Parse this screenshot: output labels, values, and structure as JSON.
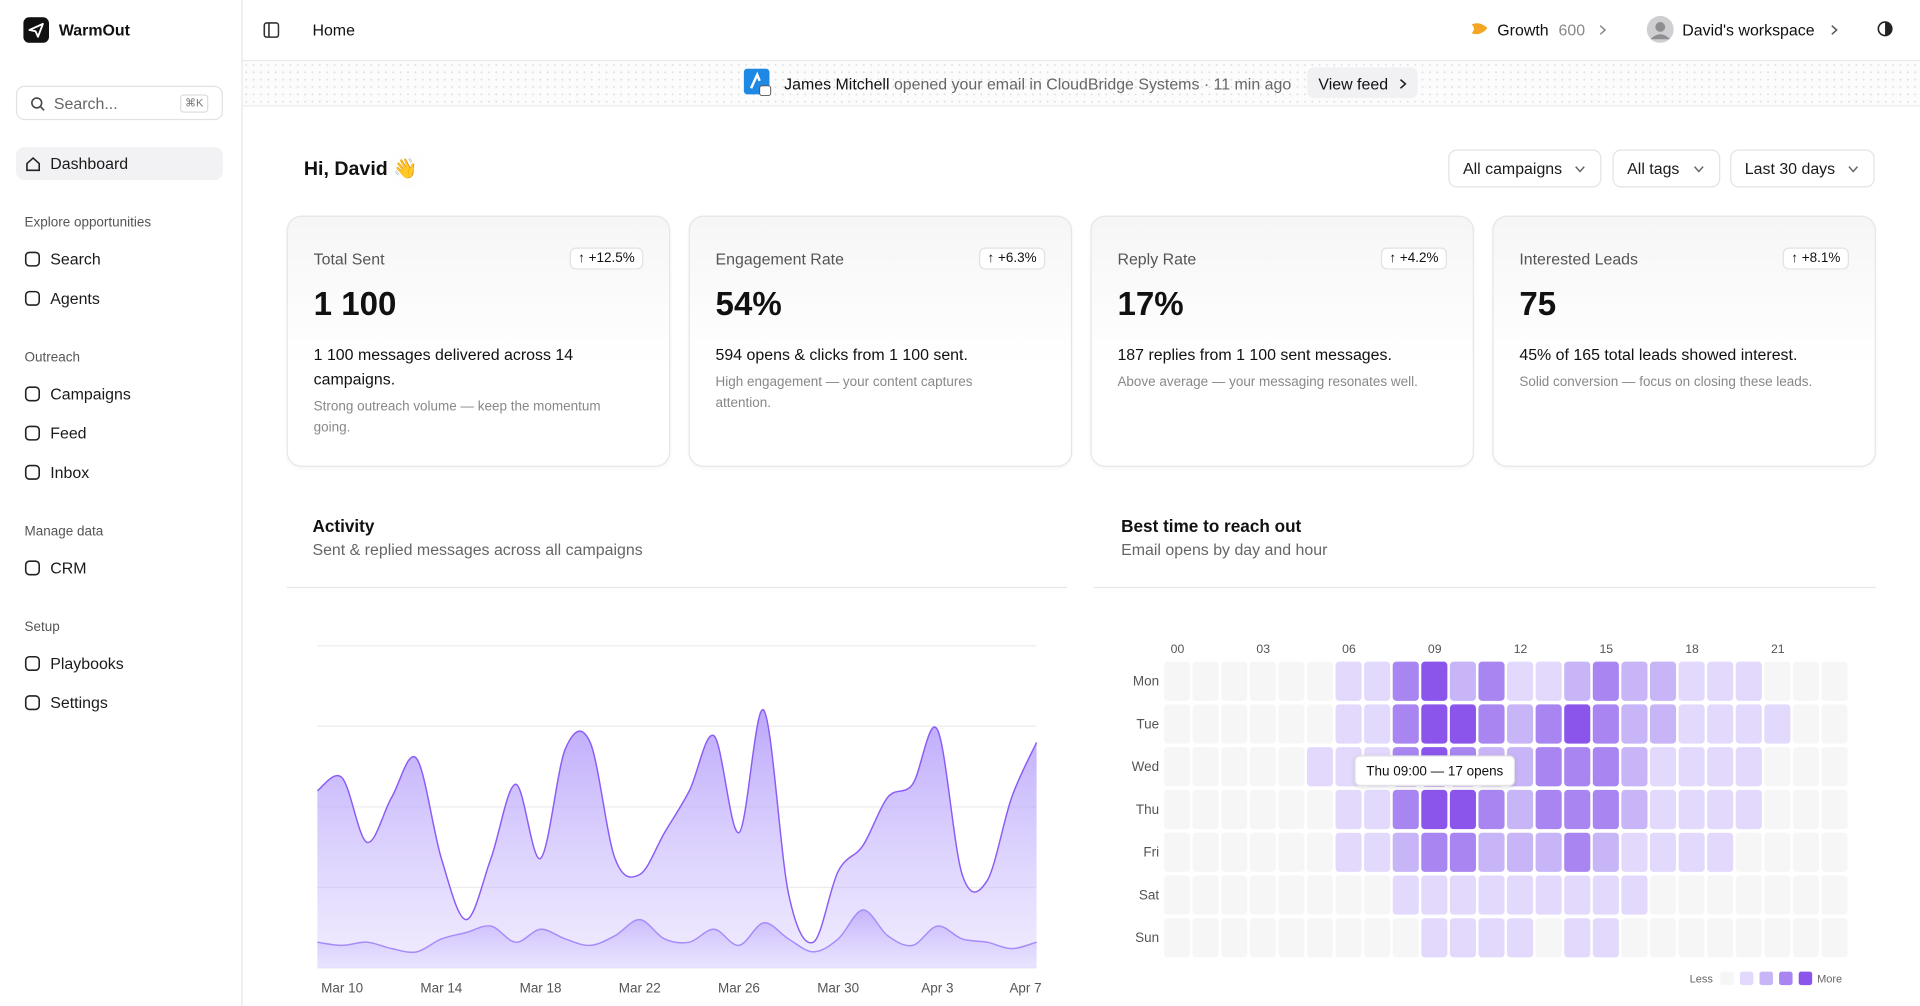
{
  "sidebar": {
    "brand": "WarmOut",
    "search_placeholder": "Search...",
    "search_shortcut": "⌘K",
    "active": "Dashboard",
    "sections": [
      {
        "title": "Explore opportunities",
        "items": [
          "Search",
          "Agents"
        ]
      },
      {
        "title": "Outreach",
        "items": [
          "Campaigns",
          "Feed",
          "Inbox"
        ]
      },
      {
        "title": "Manage data",
        "items": [
          "CRM"
        ]
      },
      {
        "title": "Setup",
        "items": [
          "Playbooks",
          "Settings"
        ]
      }
    ]
  },
  "header": {
    "breadcrumb": "Home",
    "plan": "Growth",
    "credits": "600",
    "workspace": "David's workspace"
  },
  "notification": {
    "name": "James Mitchell",
    "text": "opened your email in CloudBridge Systems · 11 min ago",
    "action": "View feed"
  },
  "greeting": "Hi, David 👋",
  "filters": [
    "All campaigns",
    "All tags",
    "Last 30 days"
  ],
  "stats": [
    {
      "label": "Total Sent",
      "delta": "↑ +12.5%",
      "value": "1 100",
      "description": "1 100 messages delivered across 14 campaigns.",
      "note": "Strong outreach volume — keep the momentum going."
    },
    {
      "label": "Engagement Rate",
      "delta": "↑ +6.3%",
      "value": "54%",
      "description": "594 opens & clicks from 1 100 sent.",
      "note": "High engagement — your content captures attention."
    },
    {
      "label": "Reply Rate",
      "delta": "↑ +4.2%",
      "value": "17%",
      "description": "187 replies from 1 100 sent messages.",
      "note": "Above average — your messaging resonates well."
    },
    {
      "label": "Interested Leads",
      "delta": "↑ +8.1%",
      "value": "75",
      "description": "45% of 165 total leads showed interest.",
      "note": "Solid conversion — focus on closing these leads."
    }
  ],
  "chart_data": [
    {
      "type": "area",
      "title": "Activity",
      "subtitle": "Sent & replied messages across all campaigns",
      "categories": [
        null,
        "Mar 10",
        null,
        null,
        null,
        "Mar 14",
        null,
        null,
        null,
        "Mar 18",
        null,
        null,
        null,
        "Mar 22",
        null,
        null,
        null,
        "Mar 26",
        null,
        null,
        null,
        "Mar 30",
        null,
        null,
        null,
        "Apr 3",
        null,
        null,
        null,
        "Apr 7"
      ],
      "ylim": [
        0,
        100
      ],
      "grid": true,
      "series": [
        {
          "color": "#8b5cf6",
          "values": [
            55,
            59,
            39,
            53,
            65,
            34,
            15,
            34,
            57,
            34,
            68,
            70,
            34,
            29,
            42,
            55,
            72,
            42,
            80,
            23,
            8,
            30,
            38,
            53,
            57,
            74,
            29,
            27,
            53,
            70
          ]
        },
        {
          "color": "#a78bfa",
          "values": [
            8,
            7,
            8,
            6,
            5,
            9,
            11,
            13,
            8,
            12,
            9,
            7,
            10,
            15,
            9,
            8,
            12,
            7,
            14,
            9,
            5,
            9,
            18,
            10,
            7,
            13,
            9,
            8,
            6,
            8
          ]
        }
      ]
    },
    {
      "type": "heatmap",
      "title": "Best time to reach out",
      "subtitle": "Email opens by day and hour",
      "rows": [
        "Mon",
        "Tue",
        "Wed",
        "Thu",
        "Fri",
        "Sat",
        "Sun"
      ],
      "columns": [
        "00",
        null,
        null,
        "03",
        null,
        null,
        "06",
        null,
        null,
        "09",
        null,
        null,
        "12",
        null,
        null,
        "15",
        null,
        null,
        "18",
        null,
        null,
        "21",
        null,
        null
      ],
      "colors": [
        "#f6f6f7",
        "#e2d9fc",
        "#c8b5f7",
        "#a885f1",
        "#8b55ec"
      ],
      "values": [
        [
          0,
          0,
          0,
          0,
          0,
          0,
          1,
          1,
          3,
          4,
          2,
          3,
          1,
          1,
          2,
          3,
          2,
          2,
          1,
          1,
          1,
          0,
          0,
          0
        ],
        [
          0,
          0,
          0,
          0,
          0,
          0,
          1,
          1,
          3,
          4,
          4,
          3,
          2,
          3,
          4,
          3,
          2,
          2,
          1,
          1,
          1,
          1,
          0,
          0
        ],
        [
          0,
          0,
          0,
          0,
          0,
          1,
          1,
          1,
          3,
          4,
          3,
          2,
          2,
          3,
          3,
          3,
          2,
          1,
          1,
          1,
          1,
          0,
          0,
          0
        ],
        [
          0,
          0,
          0,
          0,
          0,
          0,
          1,
          1,
          3,
          4,
          4,
          3,
          2,
          3,
          3,
          3,
          2,
          1,
          1,
          1,
          1,
          0,
          0,
          0
        ],
        [
          0,
          0,
          0,
          0,
          0,
          0,
          1,
          1,
          2,
          3,
          3,
          2,
          2,
          2,
          3,
          2,
          1,
          1,
          1,
          1,
          0,
          0,
          0,
          0
        ],
        [
          0,
          0,
          0,
          0,
          0,
          0,
          0,
          0,
          1,
          1,
          1,
          1,
          1,
          1,
          1,
          1,
          1,
          0,
          0,
          0,
          0,
          0,
          0,
          0
        ],
        [
          0,
          0,
          0,
          0,
          0,
          0,
          0,
          0,
          0,
          1,
          1,
          1,
          1,
          0,
          1,
          1,
          0,
          0,
          0,
          0,
          0,
          0,
          0,
          0
        ]
      ],
      "tooltip": "Thu 09:00 — 17 opens",
      "legend": {
        "low": "Less",
        "high": "More"
      }
    }
  ]
}
